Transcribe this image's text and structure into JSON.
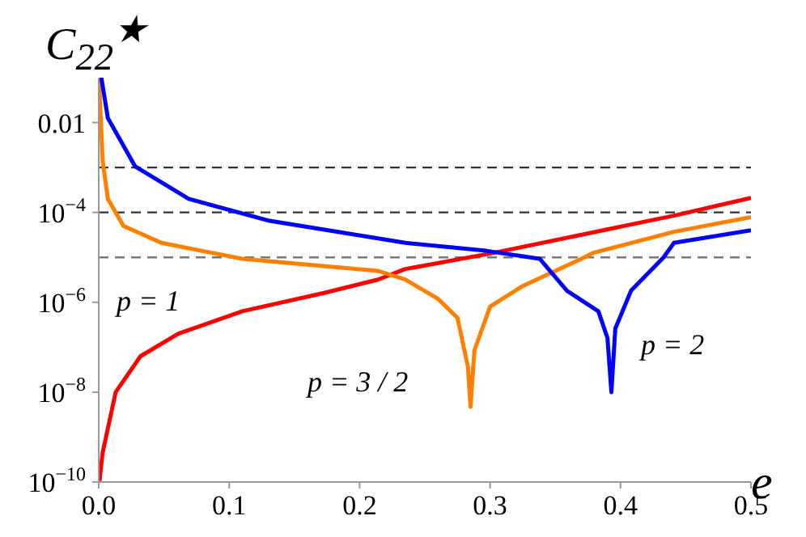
{
  "chart_data": {
    "type": "line",
    "ylabel": "C$_{22}$$^{★}$",
    "xlabel": "e",
    "log": "y",
    "xlim": [
      0,
      0.5
    ],
    "ylim": [
      1e-10,
      0.1
    ],
    "xticks": [
      {
        "value": 0,
        "label": "0.0"
      },
      {
        "value": 0.1,
        "label": "0.1"
      },
      {
        "value": 0.2,
        "label": "0.2"
      },
      {
        "value": 0.3,
        "label": "0.3"
      },
      {
        "value": 0.4,
        "label": "0.4"
      },
      {
        "value": 0.5,
        "label": "0.5"
      }
    ],
    "yticks": [
      {
        "value": 1e-10,
        "label": "10$^{−10}$"
      },
      {
        "value": 1e-08,
        "label": "10$^{−8}$"
      },
      {
        "value": 1e-06,
        "label": "10$^{−6}$"
      },
      {
        "value": 0.0001,
        "label": "10$^{−4}$"
      },
      {
        "value": 0.01,
        "label": "0.01"
      }
    ],
    "grid": false,
    "legend": false,
    "marker": "none",
    "line_style": "solid",
    "series": [
      {
        "name": "p = 1",
        "color": "#ff0000",
        "x": [
          0.0005,
          0.003,
          0.013,
          0.032,
          0.061,
          0.11,
          0.172,
          0.214,
          0.235,
          0.303,
          0.441,
          0.5
        ],
        "values": [
          1e-10,
          4.5e-10,
          1e-08,
          6.3e-08,
          2e-07,
          6.3e-07,
          1.6e-06,
          3.2e-06,
          5.5e-06,
          1.26e-05,
          8.5e-05,
          0.00021
        ]
      },
      {
        "name": "p = 3 / 2",
        "color": "#ff8000",
        "x": [
          0.0002,
          0.003,
          0.007,
          0.019,
          0.048,
          0.11,
          0.214,
          0.235,
          0.26,
          0.275,
          0.283,
          0.284,
          0.285,
          0.288,
          0.3,
          0.325,
          0.37,
          0.379,
          0.441,
          0.5
        ],
        "values": [
          0.1,
          0.0014,
          0.0002,
          5e-05,
          2.1e-05,
          9.3e-06,
          5e-06,
          3.2e-06,
          1.2e-06,
          4.5e-07,
          3.7e-08,
          1.3e-08,
          4.7e-09,
          8.5e-08,
          8e-07,
          2.3e-06,
          9.3e-06,
          1.26e-05,
          3.7e-05,
          7.9e-05
        ]
      },
      {
        "name": "p = 2",
        "color": "#0000ff",
        "x": [
          0.002,
          0.007,
          0.028,
          0.069,
          0.131,
          0.235,
          0.297,
          0.338,
          0.359,
          0.383,
          0.39,
          0.393,
          0.396,
          0.408,
          0.433,
          0.441,
          0.5
        ],
        "values": [
          0.1,
          0.0126,
          0.00105,
          0.0002,
          6.5e-05,
          2.1e-05,
          1.4e-05,
          9.3e-06,
          1.8e-06,
          6.3e-07,
          1.6e-07,
          1e-08,
          2.6e-07,
          1.8e-06,
          1e-05,
          2.1e-05,
          4e-05
        ]
      }
    ],
    "ref_lines": [
      {
        "axis": "y",
        "value": 0.001,
        "color": "#333333",
        "line_style": "dashed"
      },
      {
        "axis": "y",
        "value": 0.0001,
        "color": "#333333",
        "line_style": "dashed"
      },
      {
        "axis": "y",
        "value": 1e-05,
        "color": "#777777",
        "line_style": "dashed"
      }
    ]
  }
}
